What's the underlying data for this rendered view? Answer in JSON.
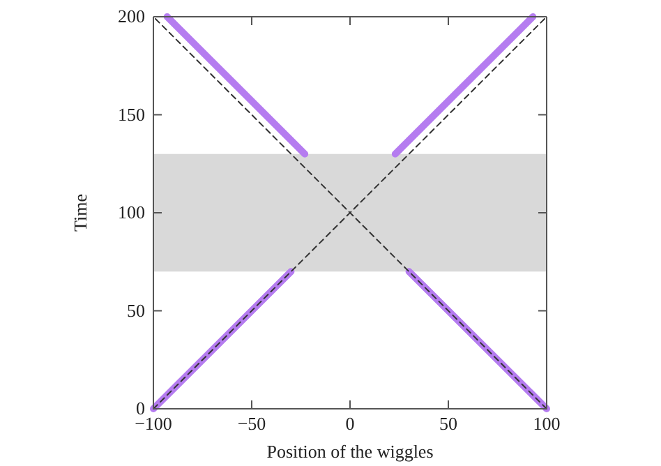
{
  "chart_data": {
    "type": "line",
    "xlabel": "Position of the wiggles",
    "ylabel": "Time",
    "xlim": [
      -100,
      100
    ],
    "ylim": [
      0,
      200
    ],
    "xticks": [
      -100,
      -50,
      0,
      50,
      100
    ],
    "yticks": [
      0,
      50,
      100,
      150,
      200
    ],
    "grid": false,
    "marker": "none",
    "bands": [
      {
        "axis": "y",
        "from": 70,
        "to": 130,
        "color": "#d9d9d9"
      }
    ],
    "series": [
      {
        "color": "#b57cf0",
        "x": [
          -100,
          -30
        ],
        "values": [
          0,
          70
        ],
        "line_style": "solid"
      },
      {
        "color": "#b57cf0",
        "x": [
          -93,
          -23
        ],
        "values": [
          200,
          130
        ],
        "line_style": "solid"
      },
      {
        "color": "#b57cf0",
        "x": [
          23,
          93
        ],
        "values": [
          130,
          200
        ],
        "line_style": "solid"
      },
      {
        "color": "#b57cf0",
        "x": [
          30,
          100
        ],
        "values": [
          70,
          0
        ],
        "line_style": "solid"
      },
      {
        "color": "#333333",
        "x": [
          -100,
          100
        ],
        "values": [
          0,
          200
        ],
        "line_style": "dashed"
      },
      {
        "color": "#333333",
        "x": [
          100,
          -100
        ],
        "values": [
          0,
          200
        ],
        "line_style": "dashed"
      }
    ]
  }
}
